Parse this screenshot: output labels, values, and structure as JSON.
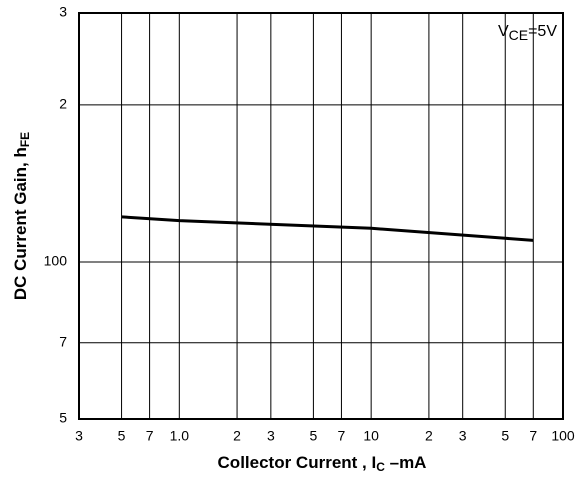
{
  "chart_data": {
    "type": "line",
    "x_label": {
      "text": "Collector Current , I",
      "sub": "C",
      "suffix": " –mA"
    },
    "y_label": {
      "text": "DC Current Gain, h",
      "sub": "FE"
    },
    "annotation": {
      "text": "V",
      "sub": "CE",
      "suffix": "=5V"
    },
    "x": [
      0.5,
      1,
      10,
      50,
      70
    ],
    "series": [
      {
        "name": "hFE",
        "color": "#000000",
        "values": [
          122,
          120,
          116,
          111,
          110
        ]
      }
    ],
    "xscale": "log",
    "yscale": "log",
    "grid": true,
    "xlim": [
      0.3,
      100
    ],
    "ylim": [
      50,
      300
    ],
    "xticks": [
      {
        "value": 0.3,
        "label": "3"
      },
      {
        "value": 0.5,
        "label": "5"
      },
      {
        "value": 0.7,
        "label": "7"
      },
      {
        "value": 1,
        "label": "1.0"
      },
      {
        "value": 2,
        "label": "2"
      },
      {
        "value": 3,
        "label": "3"
      },
      {
        "value": 5,
        "label": "5"
      },
      {
        "value": 7,
        "label": "7"
      },
      10,
      {
        "value": 20,
        "label": "2"
      },
      {
        "value": 30,
        "label": "3"
      },
      {
        "value": 50,
        "label": "5"
      },
      {
        "value": 70,
        "label": "7"
      },
      100
    ],
    "yticks": [
      {
        "value": 50,
        "label": "5"
      },
      {
        "value": 70,
        "label": "7"
      },
      100,
      {
        "value": 200,
        "label": "2"
      },
      {
        "value": 300,
        "label": "3"
      }
    ]
  }
}
